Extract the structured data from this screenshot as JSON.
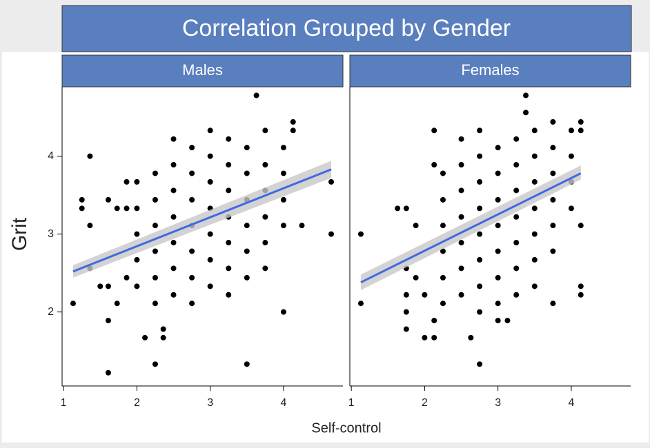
{
  "chart_data": {
    "type": "scatter",
    "title": "Correlation Grouped by Gender",
    "x_label": "Self-control",
    "y_label": "Grit",
    "xlim": [
      0.98,
      4.81
    ],
    "ylim": [
      1.05,
      4.89
    ],
    "xticks": [
      1,
      2,
      3,
      4
    ],
    "yticks": [
      2,
      3,
      4
    ],
    "color": "#000000",
    "fit_color": "#4169e1",
    "band_color": "#c8c8c8",
    "strip_color": "#5a7fbf",
    "panels": [
      {
        "name": "Males",
        "points": [
          [
            1.13,
            2.11
          ],
          [
            1.25,
            3.44
          ],
          [
            1.25,
            3.33
          ],
          [
            1.36,
            4
          ],
          [
            1.36,
            3.11
          ],
          [
            1.36,
            2.56
          ],
          [
            1.5,
            2.33
          ],
          [
            1.61,
            3.44
          ],
          [
            1.61,
            2.33
          ],
          [
            1.61,
            1.89
          ],
          [
            1.61,
            1.22
          ],
          [
            1.73,
            3.33
          ],
          [
            1.73,
            2.11
          ],
          [
            1.86,
            3.67
          ],
          [
            1.86,
            3.33
          ],
          [
            1.86,
            2.44
          ],
          [
            2.11,
            1.67
          ],
          [
            2.25,
            1.33
          ],
          [
            2.36,
            1.78
          ],
          [
            2.36,
            1.67
          ],
          [
            3.5,
            1.33
          ],
          [
            4,
            2
          ],
          [
            4.65,
            3.67
          ],
          [
            4.65,
            3
          ],
          [
            4.25,
            3.11
          ],
          [
            4.13,
            4.44
          ],
          [
            4.13,
            4.33
          ],
          [
            3.63,
            4.78
          ],
          [
            2,
            2.33
          ],
          [
            2,
            2.67
          ],
          [
            2,
            3
          ],
          [
            2,
            3.33
          ],
          [
            2,
            3.67
          ],
          [
            2.25,
            2.11
          ],
          [
            2.25,
            2.44
          ],
          [
            2.25,
            2.78
          ],
          [
            2.25,
            3.11
          ],
          [
            2.25,
            3.44
          ],
          [
            2.25,
            3.78
          ],
          [
            2.5,
            2.22
          ],
          [
            2.5,
            2.56
          ],
          [
            2.5,
            2.89
          ],
          [
            2.5,
            3.22
          ],
          [
            2.5,
            3.56
          ],
          [
            2.5,
            3.89
          ],
          [
            2.5,
            4.22
          ],
          [
            2.75,
            2.11
          ],
          [
            2.75,
            2.44
          ],
          [
            2.75,
            2.78
          ],
          [
            2.75,
            3.11
          ],
          [
            2.75,
            3.44
          ],
          [
            2.75,
            3.78
          ],
          [
            2.75,
            4.11
          ],
          [
            3,
            2.33
          ],
          [
            3,
            2.67
          ],
          [
            3,
            3
          ],
          [
            3,
            3.33
          ],
          [
            3,
            3.67
          ],
          [
            3,
            4
          ],
          [
            3,
            4.33
          ],
          [
            3.25,
            2.22
          ],
          [
            3.25,
            2.56
          ],
          [
            3.25,
            2.89
          ],
          [
            3.25,
            3.22
          ],
          [
            3.25,
            3.56
          ],
          [
            3.25,
            3.89
          ],
          [
            3.25,
            4.22
          ],
          [
            3.5,
            2.44
          ],
          [
            3.5,
            2.78
          ],
          [
            3.5,
            3.11
          ],
          [
            3.5,
            3.44
          ],
          [
            3.5,
            3.78
          ],
          [
            3.5,
            4.11
          ],
          [
            3.75,
            2.56
          ],
          [
            3.75,
            2.89
          ],
          [
            3.75,
            3.22
          ],
          [
            3.75,
            3.56
          ],
          [
            3.75,
            3.89
          ],
          [
            3.75,
            4.33
          ],
          [
            4,
            3.11
          ],
          [
            4,
            3.44
          ],
          [
            4,
            3.78
          ],
          [
            4,
            4.11
          ]
        ],
        "fit": {
          "x": [
            1.13,
            4.65
          ],
          "y": [
            2.52,
            3.83
          ],
          "lower": [
            2.44,
            3.72
          ],
          "upper": [
            2.6,
            3.94
          ]
        }
      },
      {
        "name": "Females",
        "points": [
          [
            1.13,
            3
          ],
          [
            1.13,
            2.11
          ],
          [
            1.63,
            3.33
          ],
          [
            1.75,
            3.33
          ],
          [
            1.75,
            2.56
          ],
          [
            1.75,
            2.22
          ],
          [
            1.75,
            2
          ],
          [
            1.75,
            1.78
          ],
          [
            1.88,
            3.11
          ],
          [
            1.88,
            2.44
          ],
          [
            2,
            2.22
          ],
          [
            2,
            1.67
          ],
          [
            2.13,
            1.89
          ],
          [
            2.13,
            1.67
          ],
          [
            2.13,
            4.33
          ],
          [
            2.13,
            3.89
          ],
          [
            2.63,
            1.67
          ],
          [
            2.75,
            1.33
          ],
          [
            3.38,
            4.78
          ],
          [
            3.38,
            4.56
          ],
          [
            4.13,
            4.44
          ],
          [
            4.13,
            4.33
          ],
          [
            4.13,
            2.33
          ],
          [
            4.13,
            2.22
          ],
          [
            4.13,
            3.11
          ],
          [
            3,
            1.89
          ],
          [
            3.13,
            1.89
          ],
          [
            2.25,
            2.11
          ],
          [
            2.25,
            2.44
          ],
          [
            2.25,
            2.78
          ],
          [
            2.25,
            3.11
          ],
          [
            2.25,
            3.44
          ],
          [
            2.25,
            3.78
          ],
          [
            2.5,
            2.22
          ],
          [
            2.5,
            2.56
          ],
          [
            2.5,
            2.89
          ],
          [
            2.5,
            3.22
          ],
          [
            2.5,
            3.56
          ],
          [
            2.5,
            3.89
          ],
          [
            2.5,
            4.22
          ],
          [
            2.75,
            2
          ],
          [
            2.75,
            2.33
          ],
          [
            2.75,
            2.67
          ],
          [
            2.75,
            3
          ],
          [
            2.75,
            3.33
          ],
          [
            2.75,
            3.67
          ],
          [
            2.75,
            4
          ],
          [
            2.75,
            4.33
          ],
          [
            3,
            2.11
          ],
          [
            3,
            2.44
          ],
          [
            3,
            2.78
          ],
          [
            3,
            3.11
          ],
          [
            3,
            3.44
          ],
          [
            3,
            3.78
          ],
          [
            3,
            4.11
          ],
          [
            3.25,
            2.22
          ],
          [
            3.25,
            2.56
          ],
          [
            3.25,
            2.89
          ],
          [
            3.25,
            3.22
          ],
          [
            3.25,
            3.56
          ],
          [
            3.25,
            3.89
          ],
          [
            3.25,
            4.22
          ],
          [
            3.5,
            2.33
          ],
          [
            3.5,
            2.67
          ],
          [
            3.5,
            3
          ],
          [
            3.5,
            3.33
          ],
          [
            3.5,
            3.67
          ],
          [
            3.5,
            4
          ],
          [
            3.5,
            4.33
          ],
          [
            3.75,
            2.11
          ],
          [
            3.75,
            2.78
          ],
          [
            3.75,
            3.11
          ],
          [
            3.75,
            3.44
          ],
          [
            3.75,
            3.78
          ],
          [
            3.75,
            4.11
          ],
          [
            3.75,
            4.44
          ],
          [
            4,
            3.33
          ],
          [
            4,
            3.67
          ],
          [
            4,
            4
          ],
          [
            4,
            4.33
          ]
        ],
        "fit": {
          "x": [
            1.13,
            4.13
          ],
          "y": [
            2.38,
            3.78
          ],
          "lower": [
            2.28,
            3.7
          ],
          "upper": [
            2.48,
            3.88
          ]
        }
      }
    ]
  }
}
